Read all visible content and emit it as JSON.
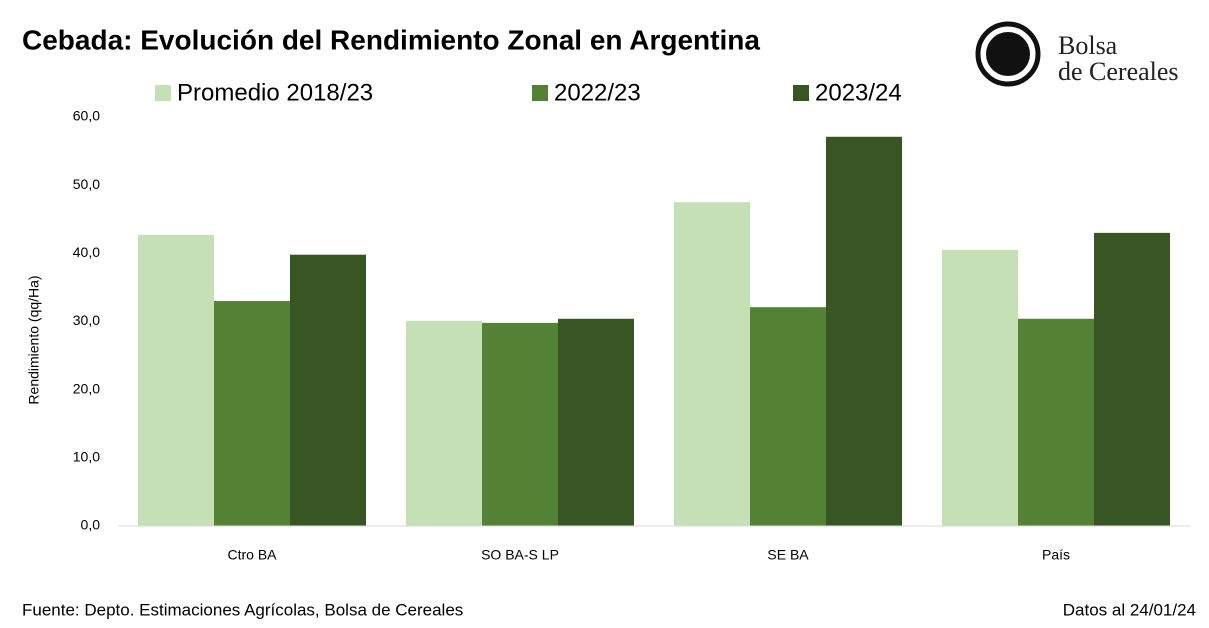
{
  "chart_data": {
    "type": "bar",
    "title": "Cebada: Evolución del Rendimiento Zonal en Argentina",
    "y_label": "Rendimiento (qq/Ha)",
    "categories": [
      "Ctro BA",
      "SO BA-S LP",
      "SE BA",
      "País"
    ],
    "series": [
      {
        "name": "Promedio 2018/23",
        "color": "#c5e0b4",
        "values": [
          42.7,
          30.1,
          47.5,
          40.5
        ]
      },
      {
        "name": "2022/23",
        "color": "#548235",
        "values": [
          33.0,
          29.8,
          32.1,
          30.4
        ]
      },
      {
        "name": "2023/24",
        "color": "#375623",
        "values": [
          39.8,
          30.4,
          57.1,
          43.0
        ]
      }
    ],
    "ylim": [
      0,
      60
    ],
    "yticks": [
      {
        "value": 0,
        "label": "0,0"
      },
      {
        "value": 10,
        "label": "10,0"
      },
      {
        "value": 20,
        "label": "20,0"
      },
      {
        "value": 30,
        "label": "30,0"
      },
      {
        "value": 40,
        "label": "40,0"
      },
      {
        "value": 50,
        "label": "50,0"
      },
      {
        "value": 60,
        "label": "60,0"
      }
    ],
    "grid": false,
    "legend": "top",
    "source": "Fuente: Depto. Estimaciones Agrícolas, Bolsa de Cereales",
    "date_note": "Datos al 24/01/24",
    "logo": [
      "Bolsa",
      "de Cereales"
    ]
  }
}
